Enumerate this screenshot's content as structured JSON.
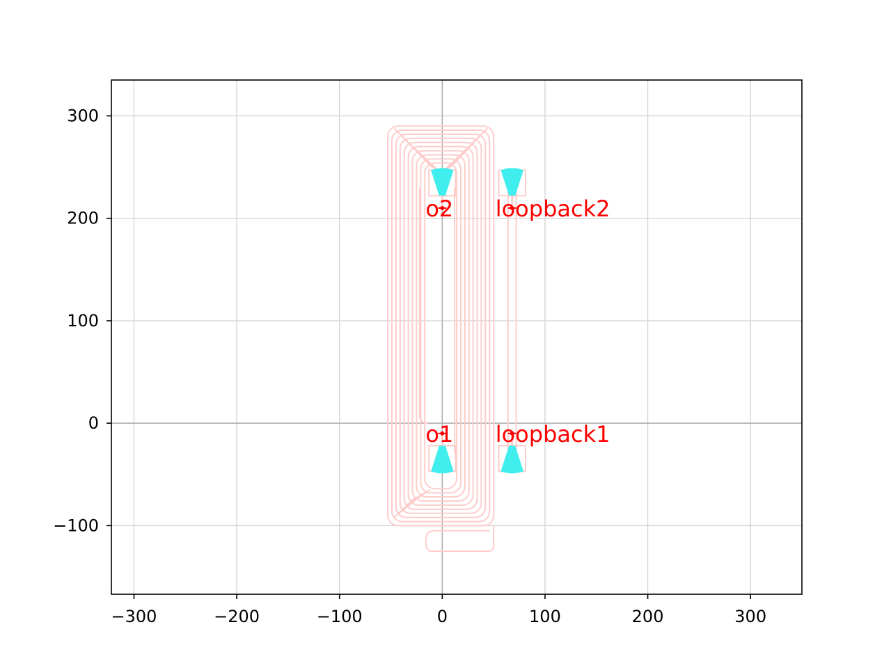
{
  "chart_data": {
    "type": "layout",
    "xlim": [
      -322,
      350
    ],
    "ylim": [
      -167,
      335
    ],
    "xticks": [
      -300,
      -200,
      -100,
      0,
      100,
      200,
      300
    ],
    "xtick_labels": [
      "−300",
      "−200",
      "−100",
      "0",
      "100",
      "200",
      "300"
    ],
    "yticks": [
      -100,
      0,
      100,
      200,
      300
    ],
    "ytick_labels": [
      "−100",
      "0",
      "100",
      "200",
      "300"
    ],
    "grid": true,
    "origin_axes": true,
    "colors": {
      "waveguide": "#ffcccc",
      "grating": "#40eeee",
      "label": "#ff0000",
      "grid": "#d6d6d6",
      "origin_axes": "#b0b0b0"
    },
    "ports": [
      {
        "name": "o1",
        "x": 0,
        "y": -10
      },
      {
        "name": "o2",
        "x": 0,
        "y": 210
      },
      {
        "name": "loopback1",
        "x": 68,
        "y": -10
      },
      {
        "name": "loopback2",
        "x": 68,
        "y": 210
      }
    ],
    "grating_couplers": [
      {
        "name": "gc-o1",
        "x": 0,
        "y_wide": -47,
        "y_narrow": -22
      },
      {
        "name": "gc-o2",
        "x": 0,
        "y_wide": 247,
        "y_narrow": 222
      },
      {
        "name": "gc-loopback1",
        "x": 68,
        "y_wide": -47,
        "y_narrow": -22
      },
      {
        "name": "gc-loopback2",
        "x": 68,
        "y_wide": 247,
        "y_narrow": 222
      }
    ],
    "spiral": {
      "loops": 10,
      "outer_left": -53,
      "outer_right": 50,
      "outer_top": 290,
      "outer_bottom": -100,
      "step": 4,
      "return_bottom": -125
    }
  }
}
